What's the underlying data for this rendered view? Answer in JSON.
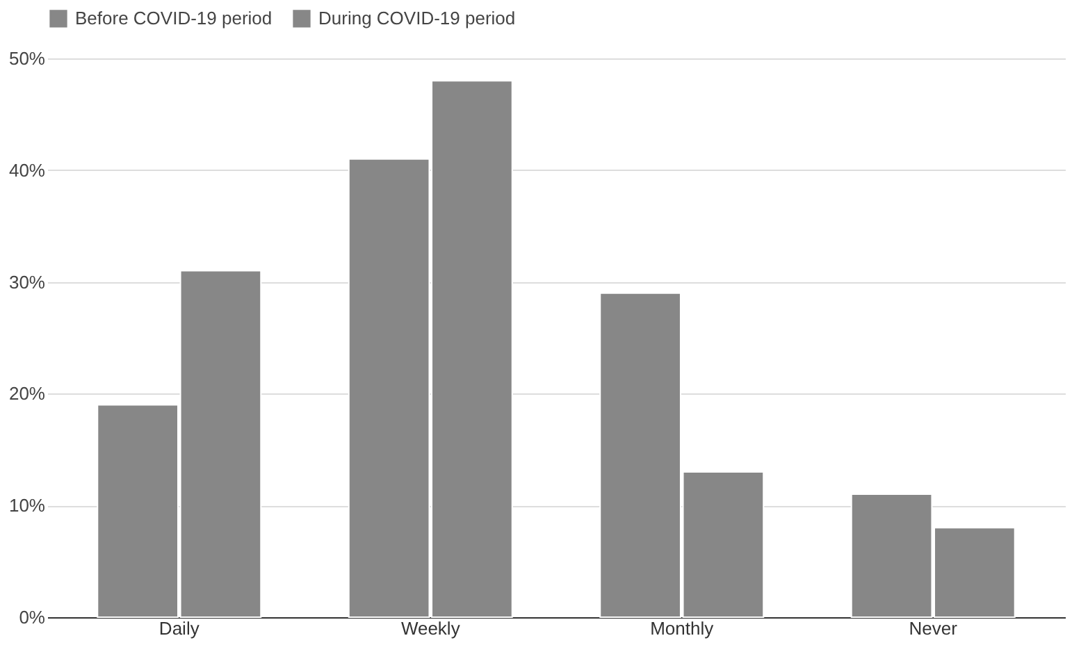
{
  "chart_data": {
    "type": "bar",
    "categories": [
      "Daily",
      "Weekly",
      "Monthly",
      "Never"
    ],
    "series": [
      {
        "name": "Before COVID-19 period",
        "color": "#878787",
        "values": [
          19,
          41,
          29,
          11
        ]
      },
      {
        "name": "During COVID-19 period",
        "color": "#878787",
        "values": [
          31,
          48,
          13,
          8
        ]
      }
    ],
    "ylim": [
      0,
      50
    ],
    "yticks": [
      {
        "value": 0,
        "label": "0%"
      },
      {
        "value": 10,
        "label": "10%"
      },
      {
        "value": 20,
        "label": "20%"
      },
      {
        "value": 30,
        "label": "30%"
      },
      {
        "value": 40,
        "label": "40%"
      },
      {
        "value": 50,
        "label": "50%"
      }
    ],
    "grid": "y",
    "legend": "top"
  }
}
